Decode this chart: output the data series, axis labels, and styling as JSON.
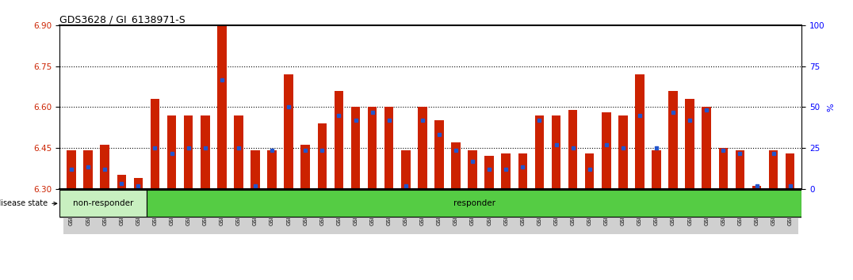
{
  "title": "GDS3628 / GI_6138971-S",
  "samples": [
    "GSM304385",
    "GSM304386",
    "GSM304387",
    "GSM304388",
    "GSM304389",
    "GSM304391",
    "GSM304392",
    "GSM304393",
    "GSM304396",
    "GSM304398",
    "GSM304399",
    "GSM304400",
    "GSM304401",
    "GSM304402",
    "GSM304409",
    "GSM304410",
    "GSM304411",
    "GSM304412",
    "GSM304413",
    "GSM304414",
    "GSM304416",
    "GSM304417",
    "GSM304418",
    "GSM304419",
    "GSM304421",
    "GSM304422",
    "GSM304423",
    "GSM304425",
    "GSM304426",
    "GSM304427",
    "GSM304428",
    "GSM304429",
    "GSM304430",
    "GSM304431",
    "GSM304432",
    "GSM304433",
    "GSM304434",
    "GSM304436",
    "GSM304437",
    "GSM304438",
    "GSM304440",
    "GSM304441",
    "GSM304443",
    "GSM304444"
  ],
  "red_values": [
    6.44,
    6.44,
    6.46,
    6.35,
    6.34,
    6.63,
    6.57,
    6.57,
    6.57,
    6.9,
    6.57,
    6.44,
    6.44,
    6.72,
    6.46,
    6.54,
    6.66,
    6.6,
    6.6,
    6.6,
    6.44,
    6.6,
    6.55,
    6.47,
    6.44,
    6.42,
    6.43,
    6.43,
    6.57,
    6.57,
    6.59,
    6.43,
    6.58,
    6.57,
    6.72,
    6.44,
    6.66,
    6.63,
    6.6,
    6.45,
    6.44,
    6.31,
    6.44,
    6.43
  ],
  "blue_values": [
    6.37,
    6.38,
    6.37,
    6.32,
    6.31,
    6.45,
    6.43,
    6.45,
    6.45,
    6.7,
    6.45,
    6.31,
    6.44,
    6.6,
    6.44,
    6.44,
    6.57,
    6.55,
    6.58,
    6.55,
    6.31,
    6.55,
    6.5,
    6.44,
    6.4,
    6.37,
    6.37,
    6.38,
    6.55,
    6.46,
    6.45,
    6.37,
    6.46,
    6.45,
    6.57,
    6.45,
    6.58,
    6.55,
    6.59,
    6.44,
    6.43,
    6.31,
    6.43,
    6.31
  ],
  "non_responder_count": 5,
  "y_min": 6.3,
  "y_max": 6.9,
  "y_ticks_left": [
    6.3,
    6.45,
    6.6,
    6.75,
    6.9
  ],
  "y_ticks_right": [
    0,
    25,
    50,
    75,
    100
  ],
  "right_axis_label": "%",
  "bar_color": "#cc2200",
  "blue_color": "#2255cc",
  "non_responder_bg": "#c8f0c0",
  "responder_bg": "#55cc44",
  "label_area_bg": "#c8c8c8",
  "dotted_lines": [
    6.45,
    6.6,
    6.75
  ]
}
